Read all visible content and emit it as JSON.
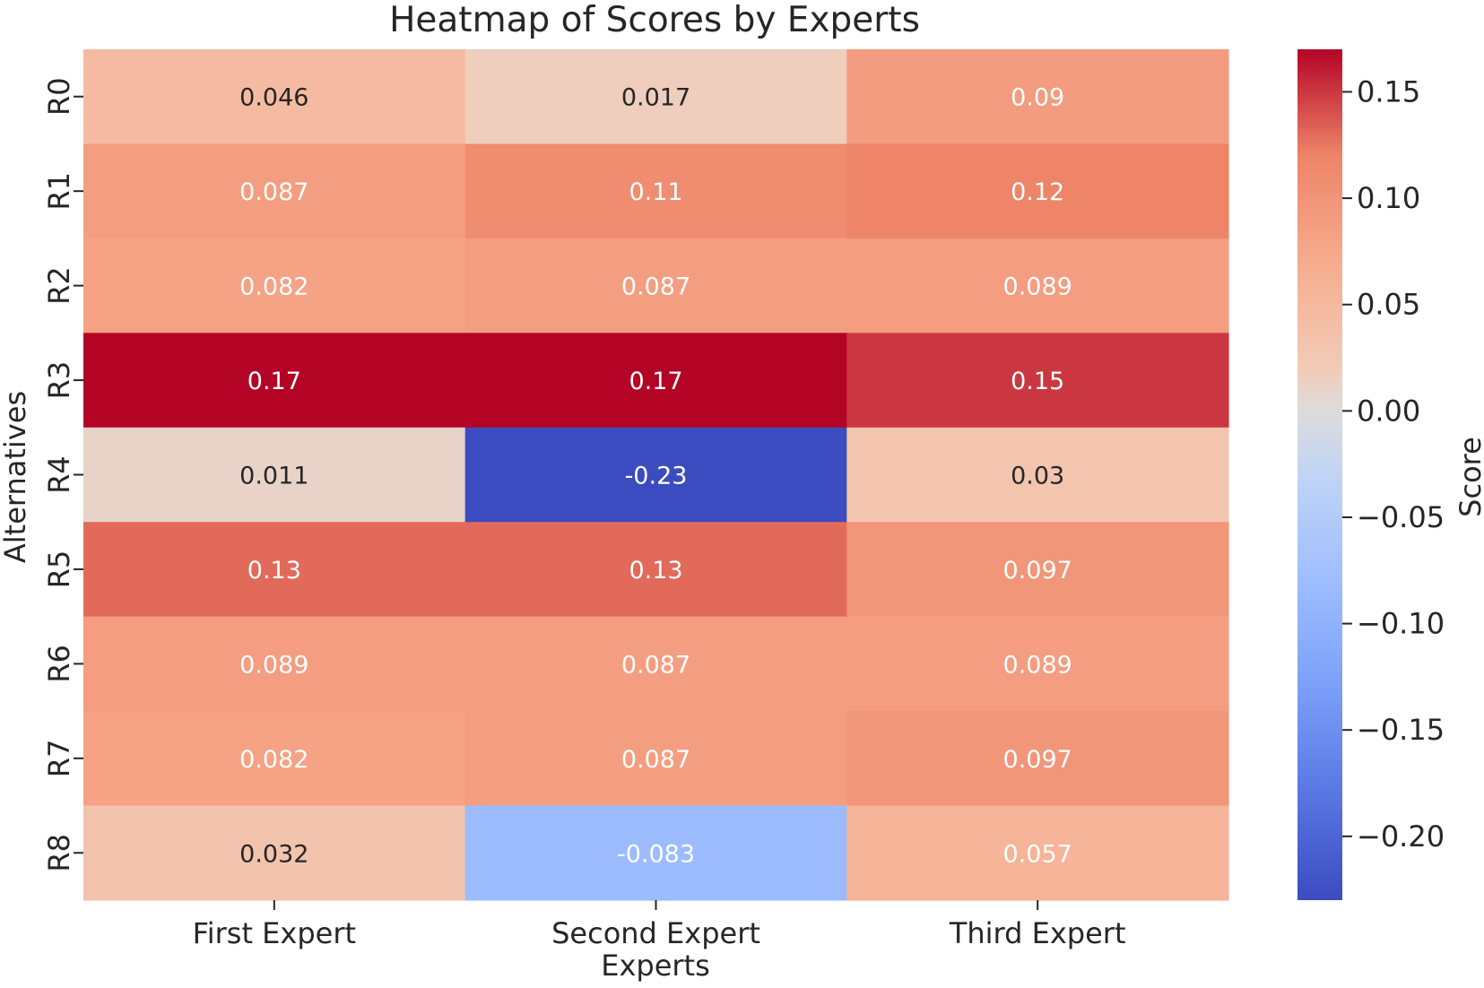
{
  "chart_data": {
    "type": "heatmap",
    "title": "Heatmap of Scores by Experts",
    "xlabel": "Experts",
    "ylabel": "Alternatives",
    "columns": [
      "First Expert",
      "Second Expert",
      "Third Expert"
    ],
    "rows": [
      "R0",
      "R1",
      "R2",
      "R3",
      "R4",
      "R5",
      "R6",
      "R7",
      "R8"
    ],
    "values": [
      [
        0.046,
        0.017,
        0.09
      ],
      [
        0.087,
        0.11,
        0.12
      ],
      [
        0.082,
        0.087,
        0.089
      ],
      [
        0.17,
        0.17,
        0.15
      ],
      [
        0.011,
        -0.23,
        0.03
      ],
      [
        0.13,
        0.13,
        0.097
      ],
      [
        0.089,
        0.087,
        0.089
      ],
      [
        0.082,
        0.087,
        0.097
      ],
      [
        0.032,
        -0.083,
        0.057
      ]
    ],
    "cell_labels": [
      [
        "0.046",
        "0.017",
        "0.09"
      ],
      [
        "0.087",
        "0.11",
        "0.12"
      ],
      [
        "0.082",
        "0.087",
        "0.089"
      ],
      [
        "0.17",
        "0.17",
        "0.15"
      ],
      [
        "0.011",
        "-0.23",
        "0.03"
      ],
      [
        "0.13",
        "0.13",
        "0.097"
      ],
      [
        "0.089",
        "0.087",
        "0.089"
      ],
      [
        "0.082",
        "0.087",
        "0.097"
      ],
      [
        "0.032",
        "-0.083",
        "0.057"
      ]
    ],
    "colorbar": {
      "label": "Score",
      "range": [
        -0.23,
        0.17
      ],
      "ticks": [
        0.15,
        0.1,
        0.05,
        0.0,
        -0.05,
        -0.1,
        -0.15,
        -0.2
      ],
      "tick_labels": [
        "0.15",
        "0.10",
        "0.05",
        "0.00",
        "−0.05",
        "−0.10",
        "−0.15",
        "−0.20"
      ],
      "colormap": "coolwarm"
    },
    "grid": false
  }
}
